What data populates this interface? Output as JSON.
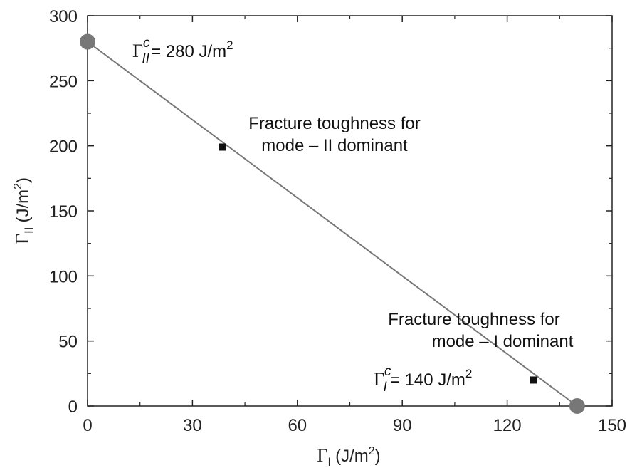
{
  "chart_data": {
    "type": "scatter",
    "xlim": [
      0,
      150
    ],
    "ylim": [
      0,
      300
    ],
    "xticks": [
      "0",
      "30",
      "60",
      "90",
      "120",
      "150"
    ],
    "yticks": [
      "0",
      "50",
      "100",
      "150",
      "200",
      "250",
      "300"
    ],
    "xlabel": {
      "symbol": "Γ",
      "sub": "I",
      "unit": "(J/m",
      "sup": "2",
      "close": ")"
    },
    "ylabel": {
      "symbol": "Γ",
      "sub": "II",
      "unit": "(J/m",
      "sup": "2",
      "close": ")"
    },
    "line": {
      "x": [
        0,
        140
      ],
      "y": [
        280,
        0
      ],
      "color": "#777777"
    },
    "endpoints": [
      {
        "x": 0,
        "y": 280,
        "color": "#777777"
      },
      {
        "x": 140,
        "y": 0,
        "color": "#777777"
      }
    ],
    "points": [
      {
        "x": 38.5,
        "y": 199,
        "color": "#111111"
      },
      {
        "x": 127.5,
        "y": 20,
        "color": "#111111"
      }
    ],
    "annotations": {
      "gamma_ii_c": {
        "symbol": "Γ",
        "sup": "c",
        "sub": "II",
        "text": "= 280 J/m",
        "text_sup": "2"
      },
      "gamma_i_c": {
        "symbol": "Γ",
        "sup": "c",
        "sub": "I",
        "text": "= 140 J/m",
        "text_sup": "2"
      },
      "mode_ii": {
        "line1": "Fracture toughness for",
        "line2": "mode – II dominant"
      },
      "mode_i": {
        "line1": "Fracture toughness for",
        "line2": "mode – I dominant"
      }
    }
  }
}
